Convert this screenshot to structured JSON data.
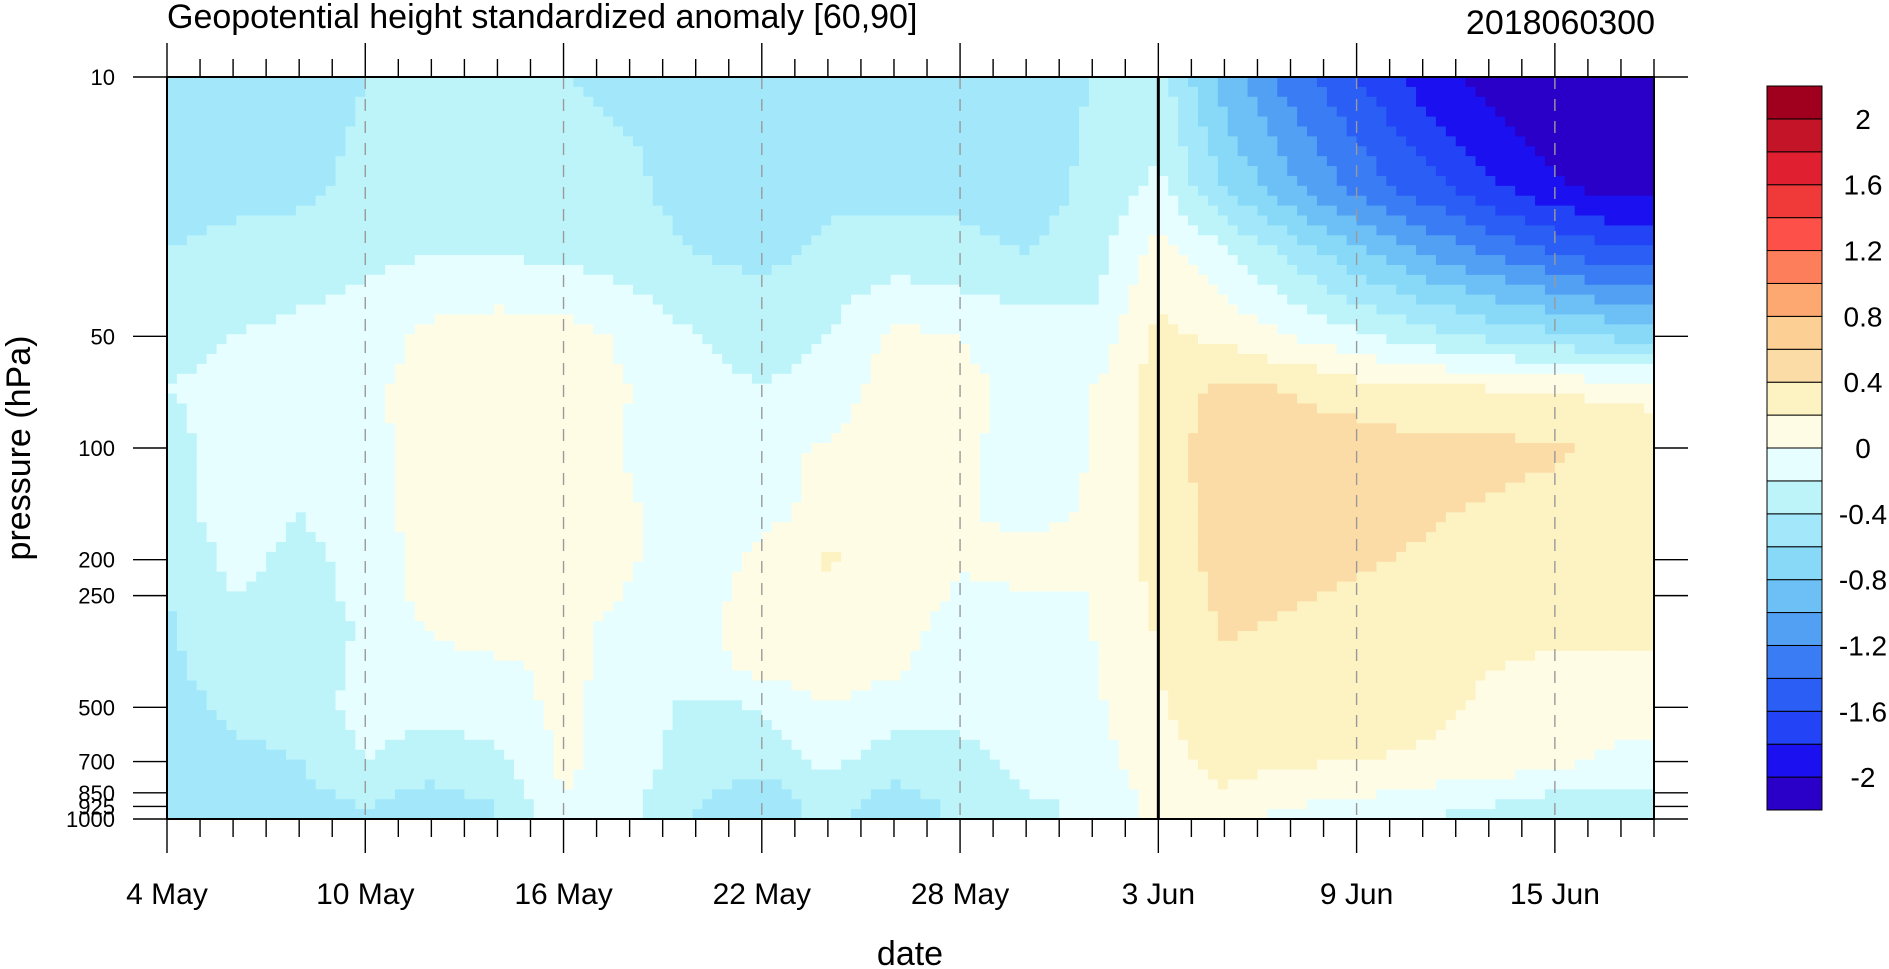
{
  "chart_data": {
    "type": "heatmap",
    "title": "Geopotential height standardized anomaly [60,90]",
    "subtitle": "2018060300",
    "xlabel": "date",
    "ylabel": "pressure (hPa)",
    "x_range_days": [
      0,
      45
    ],
    "x_ticks": [
      {
        "label": "4 May",
        "day": 0
      },
      {
        "label": "10 May",
        "day": 6
      },
      {
        "label": "16 May",
        "day": 12
      },
      {
        "label": "22 May",
        "day": 18
      },
      {
        "label": "28 May",
        "day": 24
      },
      {
        "label": "3 Jun",
        "day": 30
      },
      {
        "label": "9 Jun",
        "day": 36
      },
      {
        "label": "15 Jun",
        "day": 42
      }
    ],
    "y_scale": "log",
    "ylim": [
      1000,
      10
    ],
    "y_ticks": [
      {
        "label": "10",
        "value": 10
      },
      {
        "label": "50",
        "value": 50
      },
      {
        "label": "100",
        "value": 100
      },
      {
        "label": "200",
        "value": 200
      },
      {
        "label": "250",
        "value": 250
      },
      {
        "label": "500",
        "value": 500
      },
      {
        "label": "700",
        "value": 700
      },
      {
        "label": "850",
        "value": 850
      },
      {
        "label": "925",
        "value": 925
      },
      {
        "label": "1000",
        "value": 1000
      }
    ],
    "forecast_start_day": 30,
    "grid_dashed_x": true,
    "legend_placement": "right",
    "colorbar": {
      "levels": [
        -2.2,
        -2.0,
        -1.8,
        -1.6,
        -1.4,
        -1.2,
        -1.0,
        -0.8,
        -0.6,
        -0.4,
        -0.2,
        0.0,
        0.2,
        0.4,
        0.6,
        0.8,
        1.0,
        1.2,
        1.4,
        1.6,
        1.8,
        2.0,
        2.2
      ],
      "colors": [
        "#2a00c8",
        "#1a10f0",
        "#2244f6",
        "#2a5ef4",
        "#3a7cf4",
        "#52a0f4",
        "#6cc0f6",
        "#88d8f8",
        "#a2e8fa",
        "#bdf4fa",
        "#e6feff",
        "#fffce6",
        "#fdf2c2",
        "#fcdca6",
        "#fcd094",
        "#fca870",
        "#fc7e5a",
        "#fc5048",
        "#f03a3a",
        "#e02030",
        "#c41428",
        "#a0001e"
      ],
      "tick_labels": [
        {
          "label": "2",
          "value": 2.0
        },
        {
          "label": "1.6",
          "value": 1.6
        },
        {
          "label": "1.2",
          "value": 1.2
        },
        {
          "label": "0.8",
          "value": 0.8
        },
        {
          "label": "0.4",
          "value": 0.4
        },
        {
          "label": "0",
          "value": 0.0
        },
        {
          "label": "-0.4",
          "value": -0.4
        },
        {
          "label": "-0.8",
          "value": -0.8
        },
        {
          "label": "-1.2",
          "value": -1.2
        },
        {
          "label": "-1.6",
          "value": -1.6
        },
        {
          "label": "-2",
          "value": -2.0
        }
      ]
    },
    "field": {
      "x_days": [
        0,
        2,
        4,
        6,
        8,
        10,
        12,
        14,
        16,
        18,
        20,
        22,
        24,
        26,
        28,
        30,
        32,
        34,
        36,
        38,
        40,
        42,
        44,
        45
      ],
      "pressure_levels": [
        10,
        20,
        30,
        50,
        70,
        100,
        150,
        200,
        250,
        300,
        400,
        500,
        700,
        850,
        925,
        1000
      ],
      "values": [
        [
          -0.45,
          -0.5,
          -0.5,
          -0.4,
          -0.3,
          -0.35,
          -0.4,
          -0.45,
          -0.5,
          -0.5,
          -0.45,
          -0.5,
          -0.5,
          -0.5,
          -0.4,
          -0.3,
          -0.9,
          -1.3,
          -1.6,
          -1.9,
          -2.1,
          -2.3,
          -2.4,
          -2.4
        ],
        [
          -0.45,
          -0.45,
          -0.45,
          -0.35,
          -0.3,
          -0.3,
          -0.3,
          -0.35,
          -0.5,
          -0.5,
          -0.45,
          -0.45,
          -0.45,
          -0.5,
          -0.35,
          -0.15,
          -0.6,
          -0.95,
          -1.25,
          -1.5,
          -1.75,
          -1.95,
          -2.1,
          -2.1
        ],
        [
          -0.4,
          -0.35,
          -0.3,
          -0.25,
          -0.2,
          -0.2,
          -0.25,
          -0.3,
          -0.4,
          -0.45,
          -0.35,
          -0.3,
          -0.35,
          -0.4,
          -0.3,
          0.1,
          -0.15,
          -0.45,
          -0.75,
          -1.0,
          -1.2,
          -1.4,
          -1.55,
          -1.55
        ],
        [
          -0.3,
          -0.2,
          -0.15,
          -0.1,
          0.05,
          0.1,
          0.1,
          -0.05,
          -0.2,
          -0.3,
          -0.2,
          0.05,
          0.0,
          -0.1,
          -0.15,
          0.25,
          0.15,
          0.0,
          -0.15,
          -0.3,
          -0.45,
          -0.55,
          -0.65,
          -0.7
        ],
        [
          -0.2,
          -0.1,
          -0.15,
          -0.05,
          0.1,
          0.15,
          0.12,
          0.0,
          -0.1,
          -0.2,
          -0.1,
          0.1,
          0.05,
          -0.05,
          0.0,
          0.3,
          0.45,
          0.4,
          0.3,
          0.25,
          0.22,
          0.18,
          0.15,
          0.15
        ],
        [
          -0.3,
          -0.08,
          -0.15,
          -0.08,
          0.12,
          0.15,
          0.15,
          -0.02,
          -0.08,
          -0.05,
          0.02,
          0.12,
          0.02,
          -0.05,
          0.0,
          0.3,
          0.5,
          0.5,
          0.5,
          0.45,
          0.45,
          0.42,
          0.35,
          0.3
        ],
        [
          -0.3,
          -0.1,
          -0.2,
          -0.1,
          0.12,
          0.15,
          0.15,
          0.02,
          -0.1,
          -0.05,
          0.05,
          0.12,
          0.02,
          -0.05,
          0.02,
          0.28,
          0.5,
          0.5,
          0.48,
          0.42,
          0.38,
          0.35,
          0.3,
          0.3
        ],
        [
          -0.35,
          -0.15,
          -0.25,
          -0.15,
          0.1,
          0.15,
          0.18,
          0.02,
          -0.1,
          0.05,
          0.22,
          0.15,
          0.0,
          0.08,
          0.05,
          0.26,
          0.48,
          0.45,
          0.42,
          0.38,
          0.32,
          0.3,
          0.3,
          0.3
        ],
        [
          -0.4,
          -0.2,
          -0.25,
          -0.15,
          0.1,
          0.14,
          0.12,
          -0.02,
          -0.05,
          0.05,
          0.15,
          0.08,
          -0.02,
          -0.02,
          0.0,
          0.25,
          0.45,
          0.42,
          0.38,
          0.32,
          0.28,
          0.25,
          0.25,
          0.25
        ],
        [
          -0.42,
          -0.25,
          -0.3,
          -0.18,
          0.02,
          0.08,
          0.05,
          -0.06,
          -0.05,
          0.1,
          0.12,
          0.05,
          -0.05,
          -0.05,
          0.0,
          0.22,
          0.42,
          0.38,
          0.32,
          0.28,
          0.24,
          0.22,
          0.22,
          0.22
        ],
        [
          -0.45,
          -0.3,
          -0.3,
          -0.15,
          -0.05,
          -0.04,
          0.05,
          -0.08,
          -0.08,
          0.05,
          0.08,
          0.02,
          -0.08,
          -0.08,
          -0.02,
          0.2,
          0.38,
          0.32,
          0.3,
          0.25,
          0.2,
          0.18,
          0.18,
          0.18
        ],
        [
          -0.5,
          -0.35,
          -0.35,
          -0.1,
          -0.15,
          -0.1,
          0.05,
          -0.1,
          -0.25,
          -0.2,
          0.0,
          -0.1,
          -0.15,
          -0.1,
          -0.04,
          0.18,
          0.35,
          0.3,
          0.28,
          0.24,
          0.18,
          0.14,
          0.1,
          0.08
        ],
        [
          -0.55,
          -0.45,
          -0.4,
          -0.2,
          -0.3,
          -0.25,
          0.05,
          -0.1,
          -0.3,
          -0.3,
          -0.15,
          -0.3,
          -0.25,
          -0.15,
          -0.1,
          0.12,
          0.28,
          0.22,
          0.2,
          0.18,
          0.12,
          0.05,
          -0.05,
          -0.05
        ],
        [
          -0.6,
          -0.45,
          -0.45,
          -0.35,
          -0.45,
          -0.35,
          0.0,
          -0.15,
          -0.35,
          -0.5,
          -0.3,
          -0.45,
          -0.3,
          -0.2,
          -0.15,
          0.08,
          0.18,
          0.1,
          0.05,
          -0.05,
          -0.1,
          -0.2,
          -0.25,
          -0.25
        ],
        [
          -0.6,
          -0.45,
          -0.45,
          -0.4,
          -0.5,
          -0.4,
          0.0,
          -0.15,
          -0.4,
          -0.55,
          -0.3,
          -0.55,
          -0.35,
          -0.25,
          -0.15,
          0.05,
          0.1,
          0.0,
          -0.1,
          -0.15,
          -0.2,
          -0.3,
          -0.35,
          -0.35
        ],
        [
          -0.6,
          -0.45,
          -0.4,
          -0.4,
          -0.5,
          -0.4,
          0.0,
          -0.15,
          -0.4,
          -0.55,
          -0.3,
          -0.55,
          -0.35,
          -0.25,
          -0.15,
          0.05,
          0.05,
          -0.05,
          -0.15,
          -0.2,
          -0.25,
          -0.35,
          -0.4,
          -0.4
        ]
      ]
    }
  }
}
